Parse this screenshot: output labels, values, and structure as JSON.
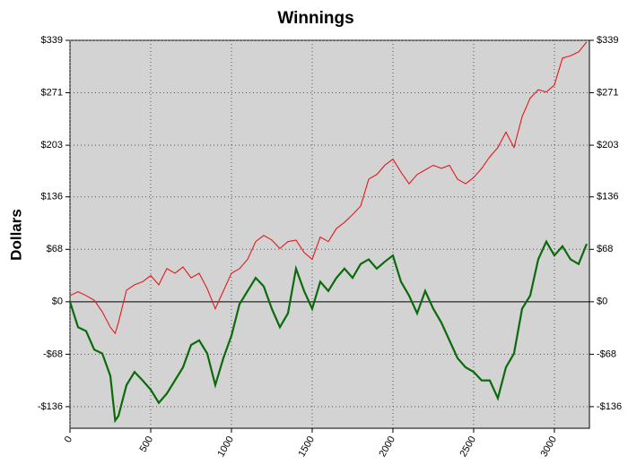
{
  "chart_data": {
    "type": "line",
    "title": "Winnings",
    "y_label": "Dollars",
    "x": [
      0,
      50,
      100,
      150,
      200,
      250,
      280,
      300,
      350,
      400,
      450,
      500,
      550,
      600,
      650,
      700,
      750,
      800,
      850,
      900,
      950,
      1000,
      1050,
      1100,
      1150,
      1200,
      1250,
      1300,
      1350,
      1400,
      1450,
      1500,
      1550,
      1600,
      1650,
      1700,
      1750,
      1800,
      1850,
      1900,
      1950,
      2000,
      2050,
      2100,
      2150,
      2200,
      2250,
      2300,
      2350,
      2400,
      2450,
      2500,
      2550,
      2600,
      2650,
      2700,
      2750,
      2800,
      2850,
      2900,
      2950,
      3000,
      3050,
      3100,
      3150,
      3200
    ],
    "series": [
      {
        "color": "#e31a1c",
        "values": [
          8,
          13,
          8,
          2,
          -13,
          -33,
          -41,
          -27,
          15,
          22,
          26,
          34,
          22,
          43,
          37,
          45,
          31,
          37,
          17,
          -9,
          14,
          37,
          43,
          55,
          78,
          86,
          80,
          69,
          78,
          80,
          64,
          55,
          84,
          78,
          95,
          103,
          113,
          124,
          159,
          165,
          177,
          185,
          168,
          153,
          165,
          171,
          177,
          173,
          177,
          159,
          153,
          161,
          173,
          188,
          200,
          220,
          200,
          240,
          264,
          275,
          272,
          281,
          316,
          319,
          324,
          337
        ]
      },
      {
        "color": "#0b6b0b",
        "values": [
          0,
          -33,
          -38,
          -62,
          -67,
          -96,
          -154,
          -148,
          -108,
          -91,
          -102,
          -114,
          -131,
          -119,
          -102,
          -85,
          -56,
          -50,
          -67,
          -108,
          -73,
          -44,
          -3,
          14,
          31,
          20,
          -9,
          -33,
          -15,
          43,
          14,
          -9,
          26,
          14,
          31,
          43,
          31,
          49,
          55,
          43,
          52,
          60,
          26,
          8,
          -15,
          14,
          -9,
          -27,
          -50,
          -73,
          -85,
          -91,
          -102,
          -102,
          -125,
          -85,
          -67,
          -9,
          8,
          55,
          78,
          60,
          72,
          55,
          49,
          75
        ]
      }
    ],
    "xlim": [
      0,
      3217
    ],
    "xticks": [
      0,
      500,
      1000,
      1500,
      2000,
      2500,
      3000
    ],
    "ylim": [
      -164,
      339
    ],
    "yticks": [
      {
        "value": 339,
        "label": "$339"
      },
      {
        "value": 271,
        "label": "$271"
      },
      {
        "value": 203,
        "label": "$203"
      },
      {
        "value": 136,
        "label": "$136"
      },
      {
        "value": 68,
        "label": "$68"
      },
      {
        "value": 0,
        "label": "$0"
      },
      {
        "value": -68,
        "label": "-$68"
      },
      {
        "value": -136,
        "label": "-$136"
      }
    ],
    "grid": true,
    "background": "#d3d3d3"
  }
}
